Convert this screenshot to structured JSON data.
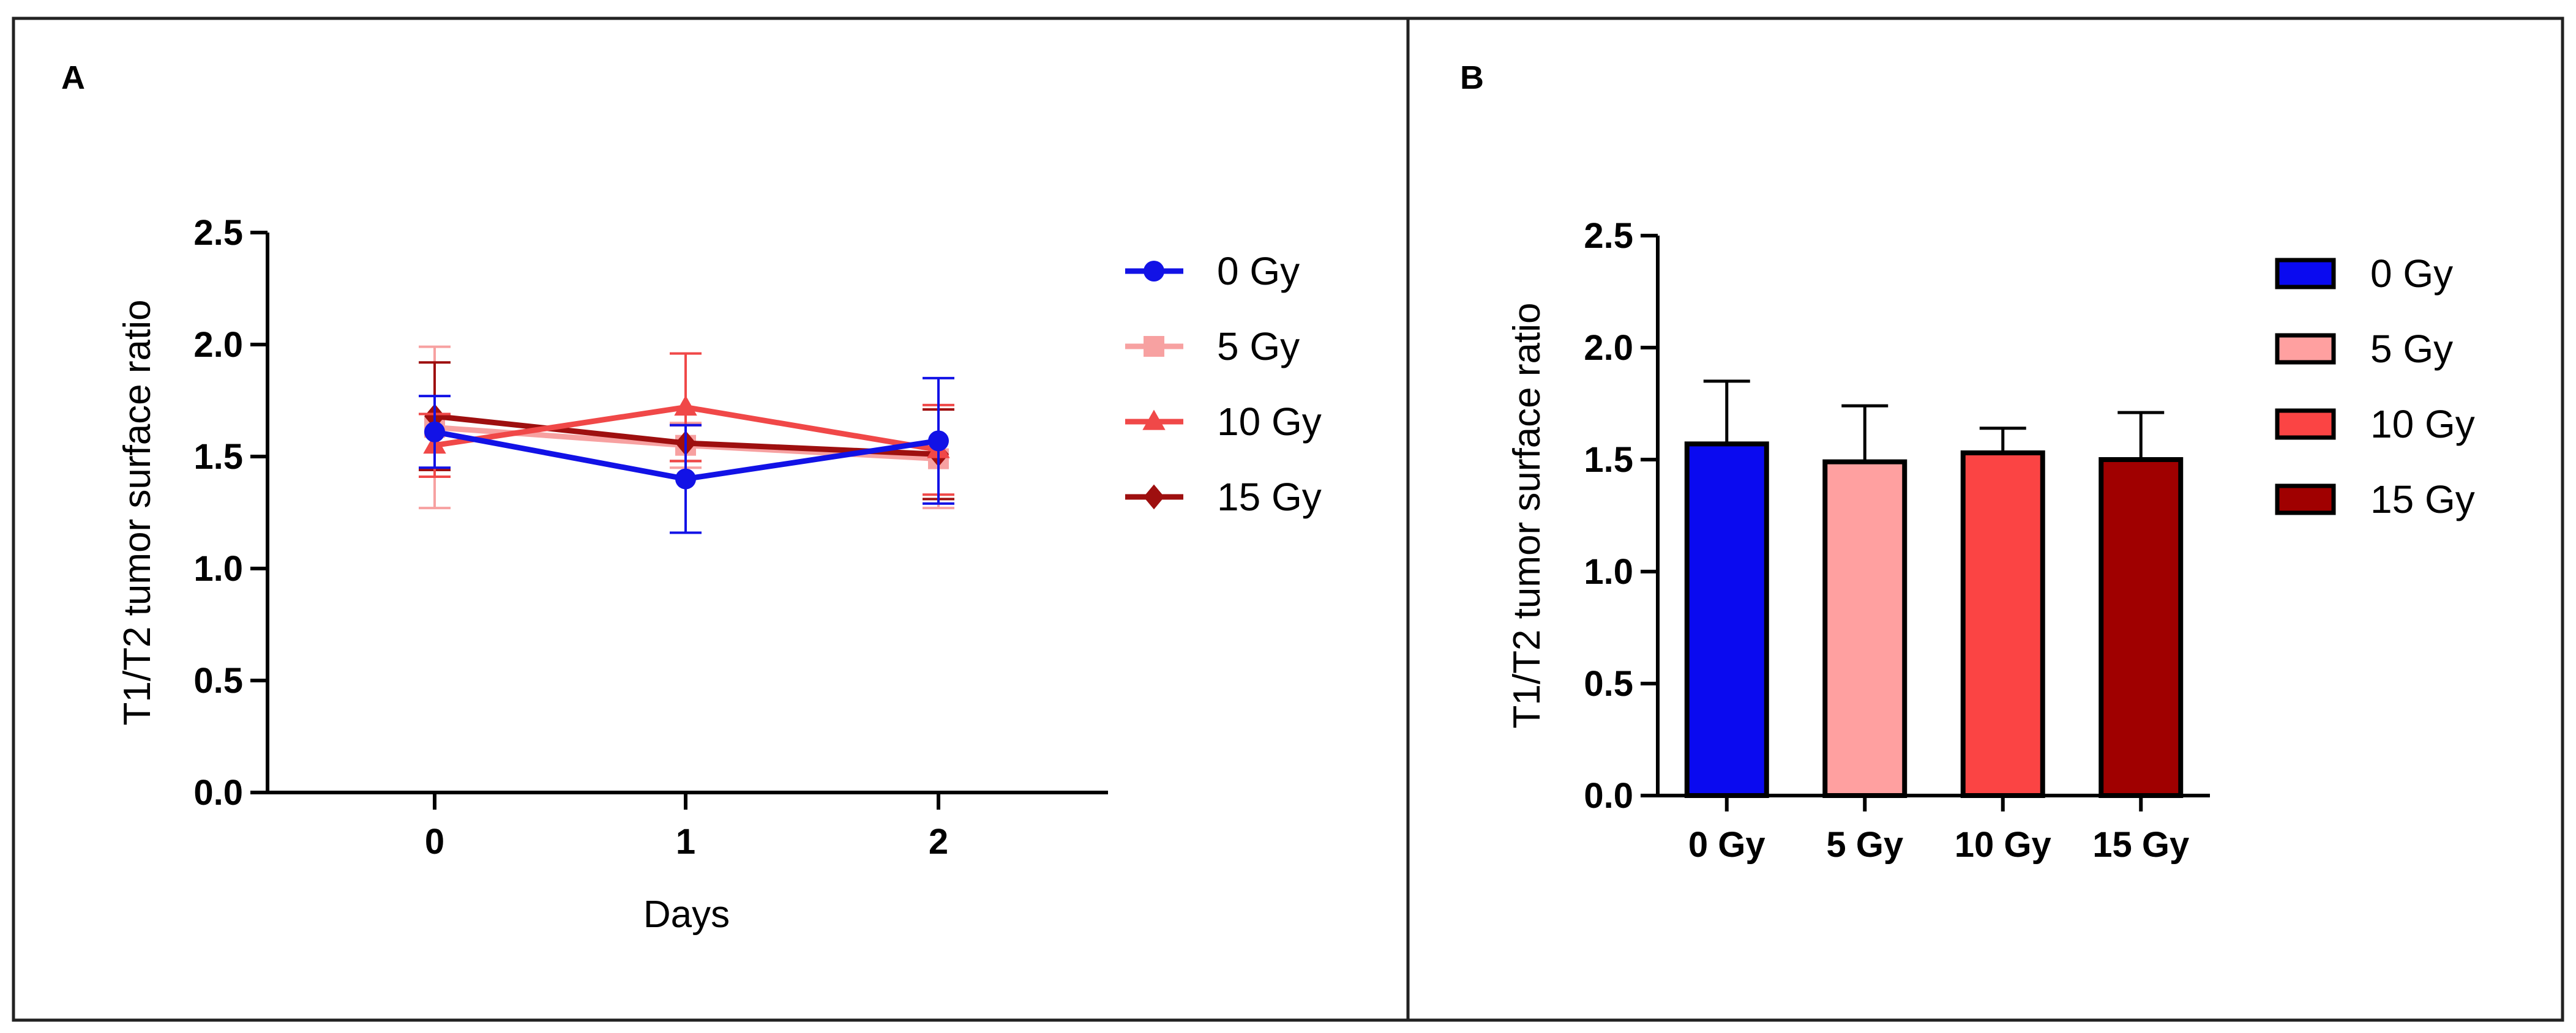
{
  "panels": [
    {
      "letter": "A",
      "chart_data": {
        "type": "line",
        "x": [
          0,
          1,
          2
        ],
        "xticks": [
          "0",
          "1",
          "2"
        ],
        "xlabel": "Days",
        "ylabel": "T1/T2 tumor surface ratio",
        "ylim": [
          0,
          2.5
        ],
        "yticks": [
          "0.0",
          "0.5",
          "1.0",
          "1.5",
          "2.0",
          "2.5"
        ],
        "legend_position": "right",
        "grid": false,
        "series": [
          {
            "name": "0 Gy",
            "color": "#1212e6",
            "marker": "circle",
            "values": [
              1.61,
              1.4,
              1.57
            ],
            "errors": [
              0.16,
              0.24,
              0.28
            ]
          },
          {
            "name": "5 Gy",
            "color": "#f7a1a1",
            "marker": "square",
            "values": [
              1.63,
              1.55,
              1.49
            ],
            "errors": [
              0.36,
              0.1,
              0.22
            ]
          },
          {
            "name": "10 Gy",
            "color": "#f04848",
            "marker": "triangle",
            "values": [
              1.55,
              1.72,
              1.53
            ],
            "errors": [
              0.14,
              0.24,
              0.2
            ]
          },
          {
            "name": "15 Gy",
            "color": "#9e0f0f",
            "marker": "diamond",
            "values": [
              1.68,
              1.56,
              1.51
            ],
            "errors": [
              0.24,
              0.08,
              0.2
            ]
          }
        ]
      }
    },
    {
      "letter": "B",
      "chart_data": {
        "type": "bar",
        "categories": [
          "0 Gy",
          "5 Gy",
          "10 Gy",
          "15 Gy"
        ],
        "xlabel": "",
        "ylabel": "T1/T2 tumor surface ratio",
        "ylim": [
          0,
          2.5
        ],
        "yticks": [
          "0.0",
          "0.5",
          "1.0",
          "1.5",
          "2.0",
          "2.5"
        ],
        "legend_position": "right",
        "grid": false,
        "series": [
          {
            "name": "0 Gy",
            "color": "#0a0af0",
            "value": 1.57,
            "error": 0.28
          },
          {
            "name": "5 Gy",
            "color": "#ffa0a0",
            "value": 1.49,
            "error": 0.25
          },
          {
            "name": "10 Gy",
            "color": "#fb4444",
            "value": 1.53,
            "error": 0.11
          },
          {
            "name": "15 Gy",
            "color": "#a00000",
            "value": 1.5,
            "error": 0.21
          }
        ]
      }
    }
  ]
}
